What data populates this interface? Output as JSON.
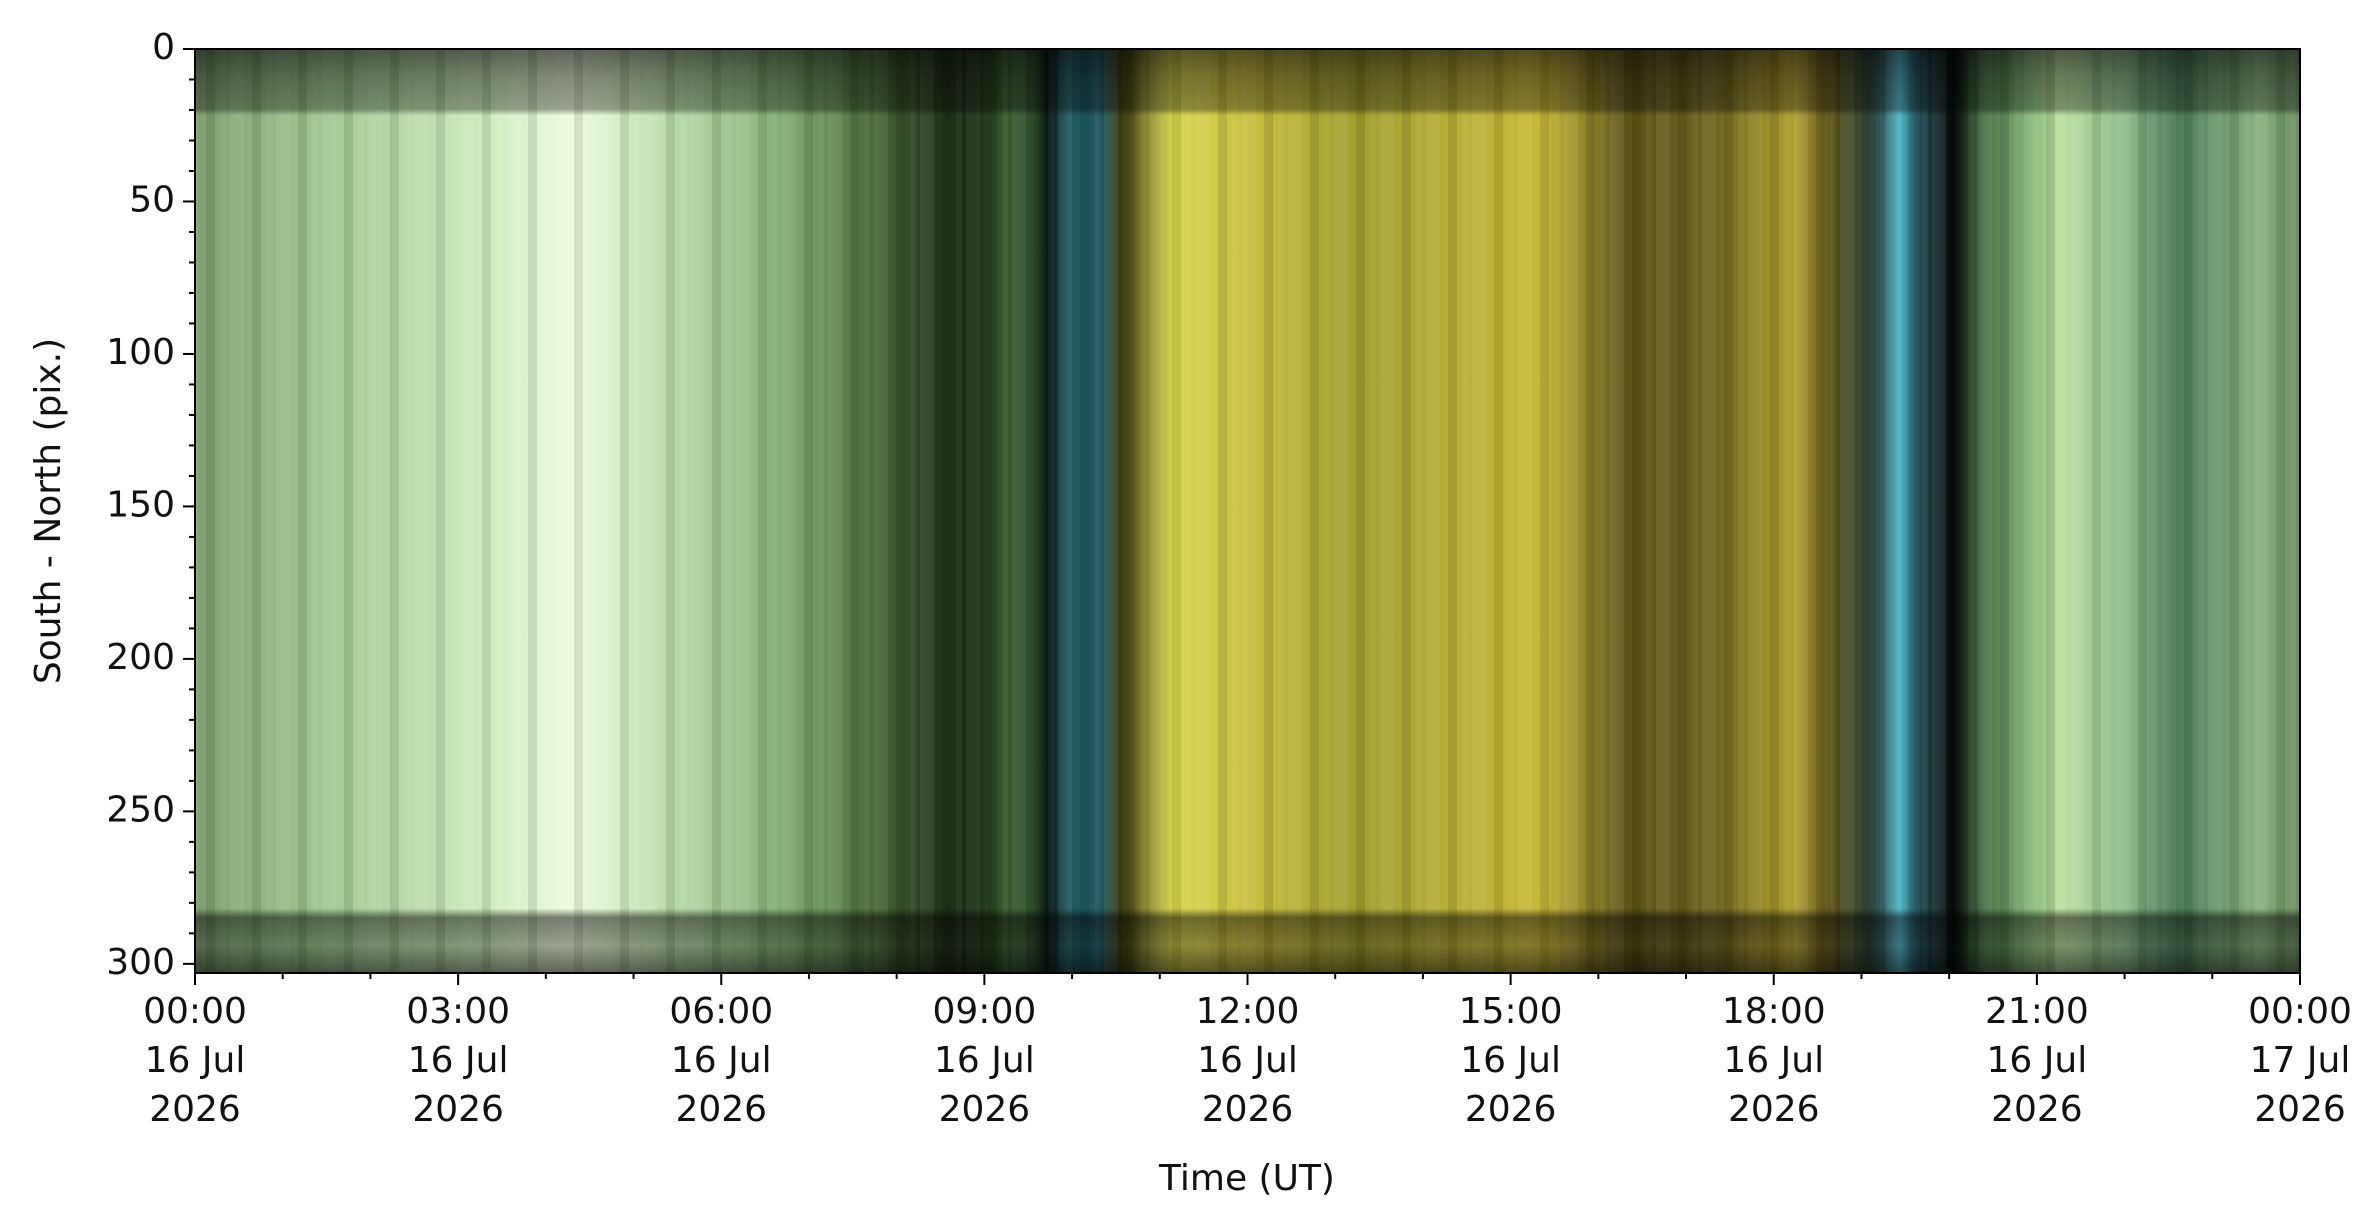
{
  "chart_data": {
    "type": "image",
    "xlabel": "Time (UT)",
    "ylabel": "South - North (pix.)",
    "xlim": [
      "2026-07-16T00:00",
      "2026-07-17T00:00"
    ],
    "xticks": [
      {
        "value": "2026-07-16T00:00",
        "label": [
          "00:00",
          "16 Jul",
          "2026"
        ]
      },
      {
        "value": "2026-07-16T03:00",
        "label": [
          "03:00",
          "16 Jul",
          "2026"
        ]
      },
      {
        "value": "2026-07-16T06:00",
        "label": [
          "06:00",
          "16 Jul",
          "2026"
        ]
      },
      {
        "value": "2026-07-16T09:00",
        "label": [
          "09:00",
          "16 Jul",
          "2026"
        ]
      },
      {
        "value": "2026-07-16T12:00",
        "label": [
          "12:00",
          "16 Jul",
          "2026"
        ]
      },
      {
        "value": "2026-07-16T15:00",
        "label": [
          "15:00",
          "16 Jul",
          "2026"
        ]
      },
      {
        "value": "2026-07-16T18:00",
        "label": [
          "18:00",
          "16 Jul",
          "2026"
        ]
      },
      {
        "value": "2026-07-16T21:00",
        "label": [
          "21:00",
          "16 Jul",
          "2026"
        ]
      },
      {
        "value": "2026-07-17T00:00",
        "label": [
          "00:00",
          "17 Jul",
          "2026"
        ]
      }
    ],
    "xminorticks": [
      "2026-07-16T01:00",
      "2026-07-16T02:00",
      "2026-07-16T04:00",
      "2026-07-16T05:00",
      "2026-07-16T07:00",
      "2026-07-16T08:00",
      "2026-07-16T10:00",
      "2026-07-16T11:00",
      "2026-07-16T13:00",
      "2026-07-16T14:00",
      "2026-07-16T16:00",
      "2026-07-16T17:00",
      "2026-07-16T19:00",
      "2026-07-16T20:00",
      "2026-07-16T22:00",
      "2026-07-16T23:00"
    ],
    "ylim": [
      303,
      0
    ],
    "yticks": [
      0,
      50,
      100,
      150,
      200,
      250,
      300
    ],
    "yminorticks": [
      10,
      20,
      30,
      40,
      60,
      70,
      80,
      90,
      110,
      120,
      130,
      140,
      160,
      170,
      180,
      190,
      210,
      220,
      230,
      240,
      260,
      270,
      280,
      290
    ]
  }
}
